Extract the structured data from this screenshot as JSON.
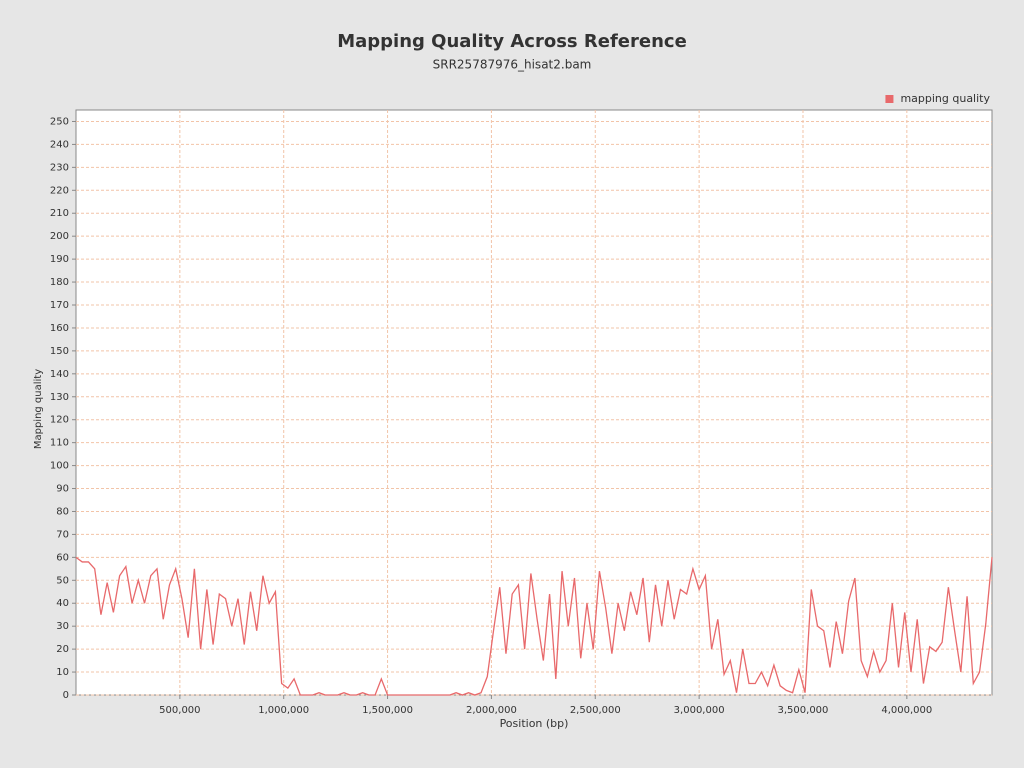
{
  "chart_data": {
    "type": "line",
    "title": "Mapping Quality Across Reference",
    "subtitle": "SRR25787976_hisat2.bam",
    "x_label": "Position (bp)",
    "y_label": "Mapping quality",
    "legend_position": "top-right",
    "grid": true,
    "xlim": [
      0,
      4410000
    ],
    "ylim": [
      0,
      255
    ],
    "xticks": [
      {
        "value": 500000,
        "label": "500,000"
      },
      {
        "value": 1000000,
        "label": "1,000,000"
      },
      {
        "value": 1500000,
        "label": "1,500,000"
      },
      {
        "value": 2000000,
        "label": "2,000,000"
      },
      {
        "value": 2500000,
        "label": "2,500,000"
      },
      {
        "value": 3000000,
        "label": "3,000,000"
      },
      {
        "value": 3500000,
        "label": "3,500,000"
      },
      {
        "value": 4000000,
        "label": "4,000,000"
      }
    ],
    "yticks": [
      0,
      10,
      20,
      30,
      40,
      50,
      60,
      70,
      80,
      90,
      100,
      110,
      120,
      130,
      140,
      150,
      160,
      170,
      180,
      190,
      200,
      210,
      220,
      230,
      240,
      250
    ],
    "x": [
      0,
      30000,
      60000,
      90000,
      120000,
      150000,
      180000,
      210000,
      240000,
      270000,
      300000,
      330000,
      360000,
      390000,
      420000,
      450000,
      480000,
      510000,
      540000,
      570000,
      600000,
      630000,
      660000,
      690000,
      720000,
      750000,
      780000,
      810000,
      840000,
      870000,
      900000,
      930000,
      960000,
      990000,
      1020000,
      1050000,
      1080000,
      1110000,
      1140000,
      1170000,
      1200000,
      1230000,
      1260000,
      1290000,
      1320000,
      1350000,
      1380000,
      1410000,
      1440000,
      1470000,
      1500000,
      1530000,
      1560000,
      1590000,
      1620000,
      1650000,
      1680000,
      1710000,
      1740000,
      1770000,
      1800000,
      1830000,
      1860000,
      1890000,
      1920000,
      1950000,
      1980000,
      2010000,
      2040000,
      2070000,
      2100000,
      2130000,
      2160000,
      2190000,
      2220000,
      2250000,
      2280000,
      2310000,
      2340000,
      2370000,
      2400000,
      2430000,
      2460000,
      2490000,
      2520000,
      2550000,
      2580000,
      2610000,
      2640000,
      2670000,
      2700000,
      2730000,
      2760000,
      2790000,
      2820000,
      2850000,
      2880000,
      2910000,
      2940000,
      2970000,
      3000000,
      3030000,
      3060000,
      3090000,
      3120000,
      3150000,
      3180000,
      3210000,
      3240000,
      3270000,
      3300000,
      3330000,
      3360000,
      3390000,
      3420000,
      3450000,
      3480000,
      3510000,
      3540000,
      3570000,
      3600000,
      3630000,
      3660000,
      3690000,
      3720000,
      3750000,
      3780000,
      3810000,
      3840000,
      3870000,
      3900000,
      3930000,
      3960000,
      3990000,
      4020000,
      4050000,
      4080000,
      4110000,
      4140000,
      4170000,
      4200000,
      4230000,
      4260000,
      4290000,
      4320000,
      4350000,
      4380000,
      4410000
    ],
    "series": [
      {
        "name": "mapping quality",
        "color": "#e8696b",
        "values": [
          60,
          58,
          58,
          55,
          35,
          49,
          36,
          52,
          56,
          40,
          50,
          40,
          52,
          55,
          33,
          48,
          55,
          42,
          25,
          55,
          20,
          46,
          22,
          44,
          42,
          30,
          42,
          22,
          45,
          28,
          52,
          40,
          45,
          5,
          3,
          7,
          0,
          0,
          0,
          1,
          0,
          0,
          0,
          1,
          0,
          0,
          1,
          0,
          0,
          7,
          0,
          0,
          0,
          0,
          0,
          0,
          0,
          0,
          0,
          0,
          0,
          1,
          0,
          1,
          0,
          1,
          8,
          28,
          47,
          18,
          44,
          48,
          20,
          53,
          33,
          15,
          44,
          7,
          54,
          30,
          51,
          16,
          40,
          20,
          54,
          38,
          18,
          40,
          28,
          45,
          35,
          51,
          23,
          48,
          30,
          50,
          33,
          46,
          44,
          55,
          46,
          52,
          20,
          33,
          9,
          15,
          1,
          20,
          5,
          5,
          10,
          4,
          13,
          4,
          2,
          1,
          11,
          1,
          46,
          30,
          28,
          12,
          32,
          18,
          41,
          51,
          15,
          8,
          19,
          10,
          15,
          40,
          12,
          36,
          10,
          33,
          5,
          21,
          19,
          23,
          47,
          28,
          10,
          43,
          5,
          10,
          31,
          60
        ]
      }
    ]
  }
}
